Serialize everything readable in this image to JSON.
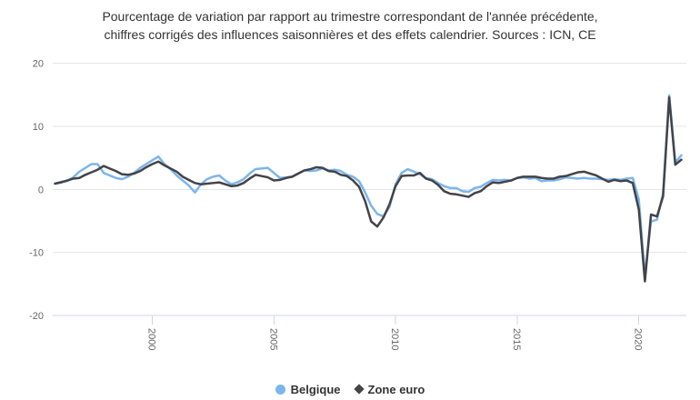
{
  "title": {
    "line1": "Pourcentage de variation par rapport au trimestre correspondant de l'année précédente,",
    "line2": "chiffres corrigés des influences saisonnières et des effets calendrier. Sources : ICN, CE"
  },
  "colors": {
    "belgique": "#7cb5ec",
    "zone_euro": "#434348",
    "gridline": "#e6e6e6",
    "axis_line": "#ccd6eb",
    "tick_label": "#666666",
    "title_text": "#333333",
    "legend_text": "#333333",
    "background": "#ffffff"
  },
  "legend": {
    "items": [
      {
        "label": "Belgique",
        "marker": "circle",
        "color": "#7cb5ec"
      },
      {
        "label": "Zone euro",
        "marker": "diamond",
        "color": "#434348"
      }
    ]
  },
  "chart_data": {
    "type": "line",
    "title": "Pourcentage de variation par rapport au trimestre correspondant de l'année précédente, chiffres corrigés des influences saisonnières et des effets calendrier. Sources : ICN, CE",
    "frequency": "quarterly",
    "start_year": 1996,
    "start_quarter": 1,
    "end_year": 2021,
    "end_quarter": 4,
    "ylim": [
      -20,
      20
    ],
    "y_ticks": [
      -20,
      -10,
      0,
      10,
      20
    ],
    "x_tick_labels": [
      "2000",
      "2005",
      "2010",
      "2015",
      "2020"
    ],
    "grid": true,
    "legend_position": "bottom-center",
    "series": [
      {
        "name": "Belgique",
        "color": "#7cb5ec",
        "marker": "circle",
        "values": [
          0.9,
          1.2,
          1.3,
          1.9,
          2.8,
          3.4,
          4.0,
          4.0,
          2.6,
          2.2,
          1.8,
          1.6,
          2.0,
          2.6,
          3.4,
          4.0,
          4.6,
          5.2,
          4.0,
          3.2,
          2.2,
          1.4,
          0.6,
          -0.5,
          0.8,
          1.6,
          2.0,
          2.2,
          1.4,
          0.8,
          1.1,
          1.6,
          2.5,
          3.2,
          3.3,
          3.4,
          2.6,
          1.8,
          1.9,
          2.0,
          2.5,
          3.0,
          2.9,
          3.0,
          3.3,
          3.0,
          3.1,
          2.9,
          2.3,
          2.0,
          1.3,
          -0.5,
          -2.6,
          -3.9,
          -4.3,
          -2.8,
          0.8,
          2.6,
          3.2,
          2.8,
          2.4,
          1.8,
          1.6,
          1.0,
          0.5,
          0.2,
          0.2,
          -0.3,
          -0.4,
          0.2,
          0.4,
          1.0,
          1.5,
          1.4,
          1.5,
          1.4,
          1.8,
          1.9,
          1.7,
          1.8,
          1.3,
          1.4,
          1.4,
          1.6,
          1.9,
          1.8,
          1.7,
          1.8,
          1.7,
          1.7,
          1.6,
          1.5,
          1.6,
          1.5,
          1.7,
          1.8,
          -1.6,
          -13.7,
          -5.1,
          -4.8,
          -0.6,
          14.9,
          4.3,
          5.4
        ]
      },
      {
        "name": "Zone euro",
        "color": "#434348",
        "marker": "diamond",
        "values": [
          0.9,
          1.1,
          1.4,
          1.7,
          1.8,
          2.3,
          2.7,
          3.1,
          3.7,
          3.3,
          2.9,
          2.4,
          2.3,
          2.5,
          2.9,
          3.5,
          4.0,
          4.4,
          3.8,
          3.3,
          2.8,
          2.0,
          1.5,
          1.0,
          0.8,
          0.9,
          1.0,
          1.1,
          0.8,
          0.5,
          0.6,
          1.0,
          1.7,
          2.3,
          2.1,
          1.9,
          1.4,
          1.5,
          1.8,
          2.0,
          2.5,
          3.0,
          3.2,
          3.5,
          3.4,
          2.9,
          2.8,
          2.3,
          2.1,
          1.4,
          0.4,
          -1.9,
          -5.1,
          -5.9,
          -4.5,
          -2.4,
          0.5,
          2.1,
          2.2,
          2.2,
          2.6,
          1.7,
          1.4,
          0.7,
          -0.3,
          -0.7,
          -0.8,
          -1.0,
          -1.2,
          -0.6,
          -0.3,
          0.5,
          1.1,
          1.0,
          1.2,
          1.4,
          1.8,
          2.0,
          2.0,
          2.0,
          1.8,
          1.7,
          1.7,
          2.0,
          2.1,
          2.4,
          2.7,
          2.8,
          2.5,
          2.2,
          1.7,
          1.2,
          1.5,
          1.3,
          1.4,
          1.0,
          -3.2,
          -14.6,
          -4.0,
          -4.3,
          -1.1,
          14.6,
          3.9,
          4.7
        ]
      }
    ]
  }
}
